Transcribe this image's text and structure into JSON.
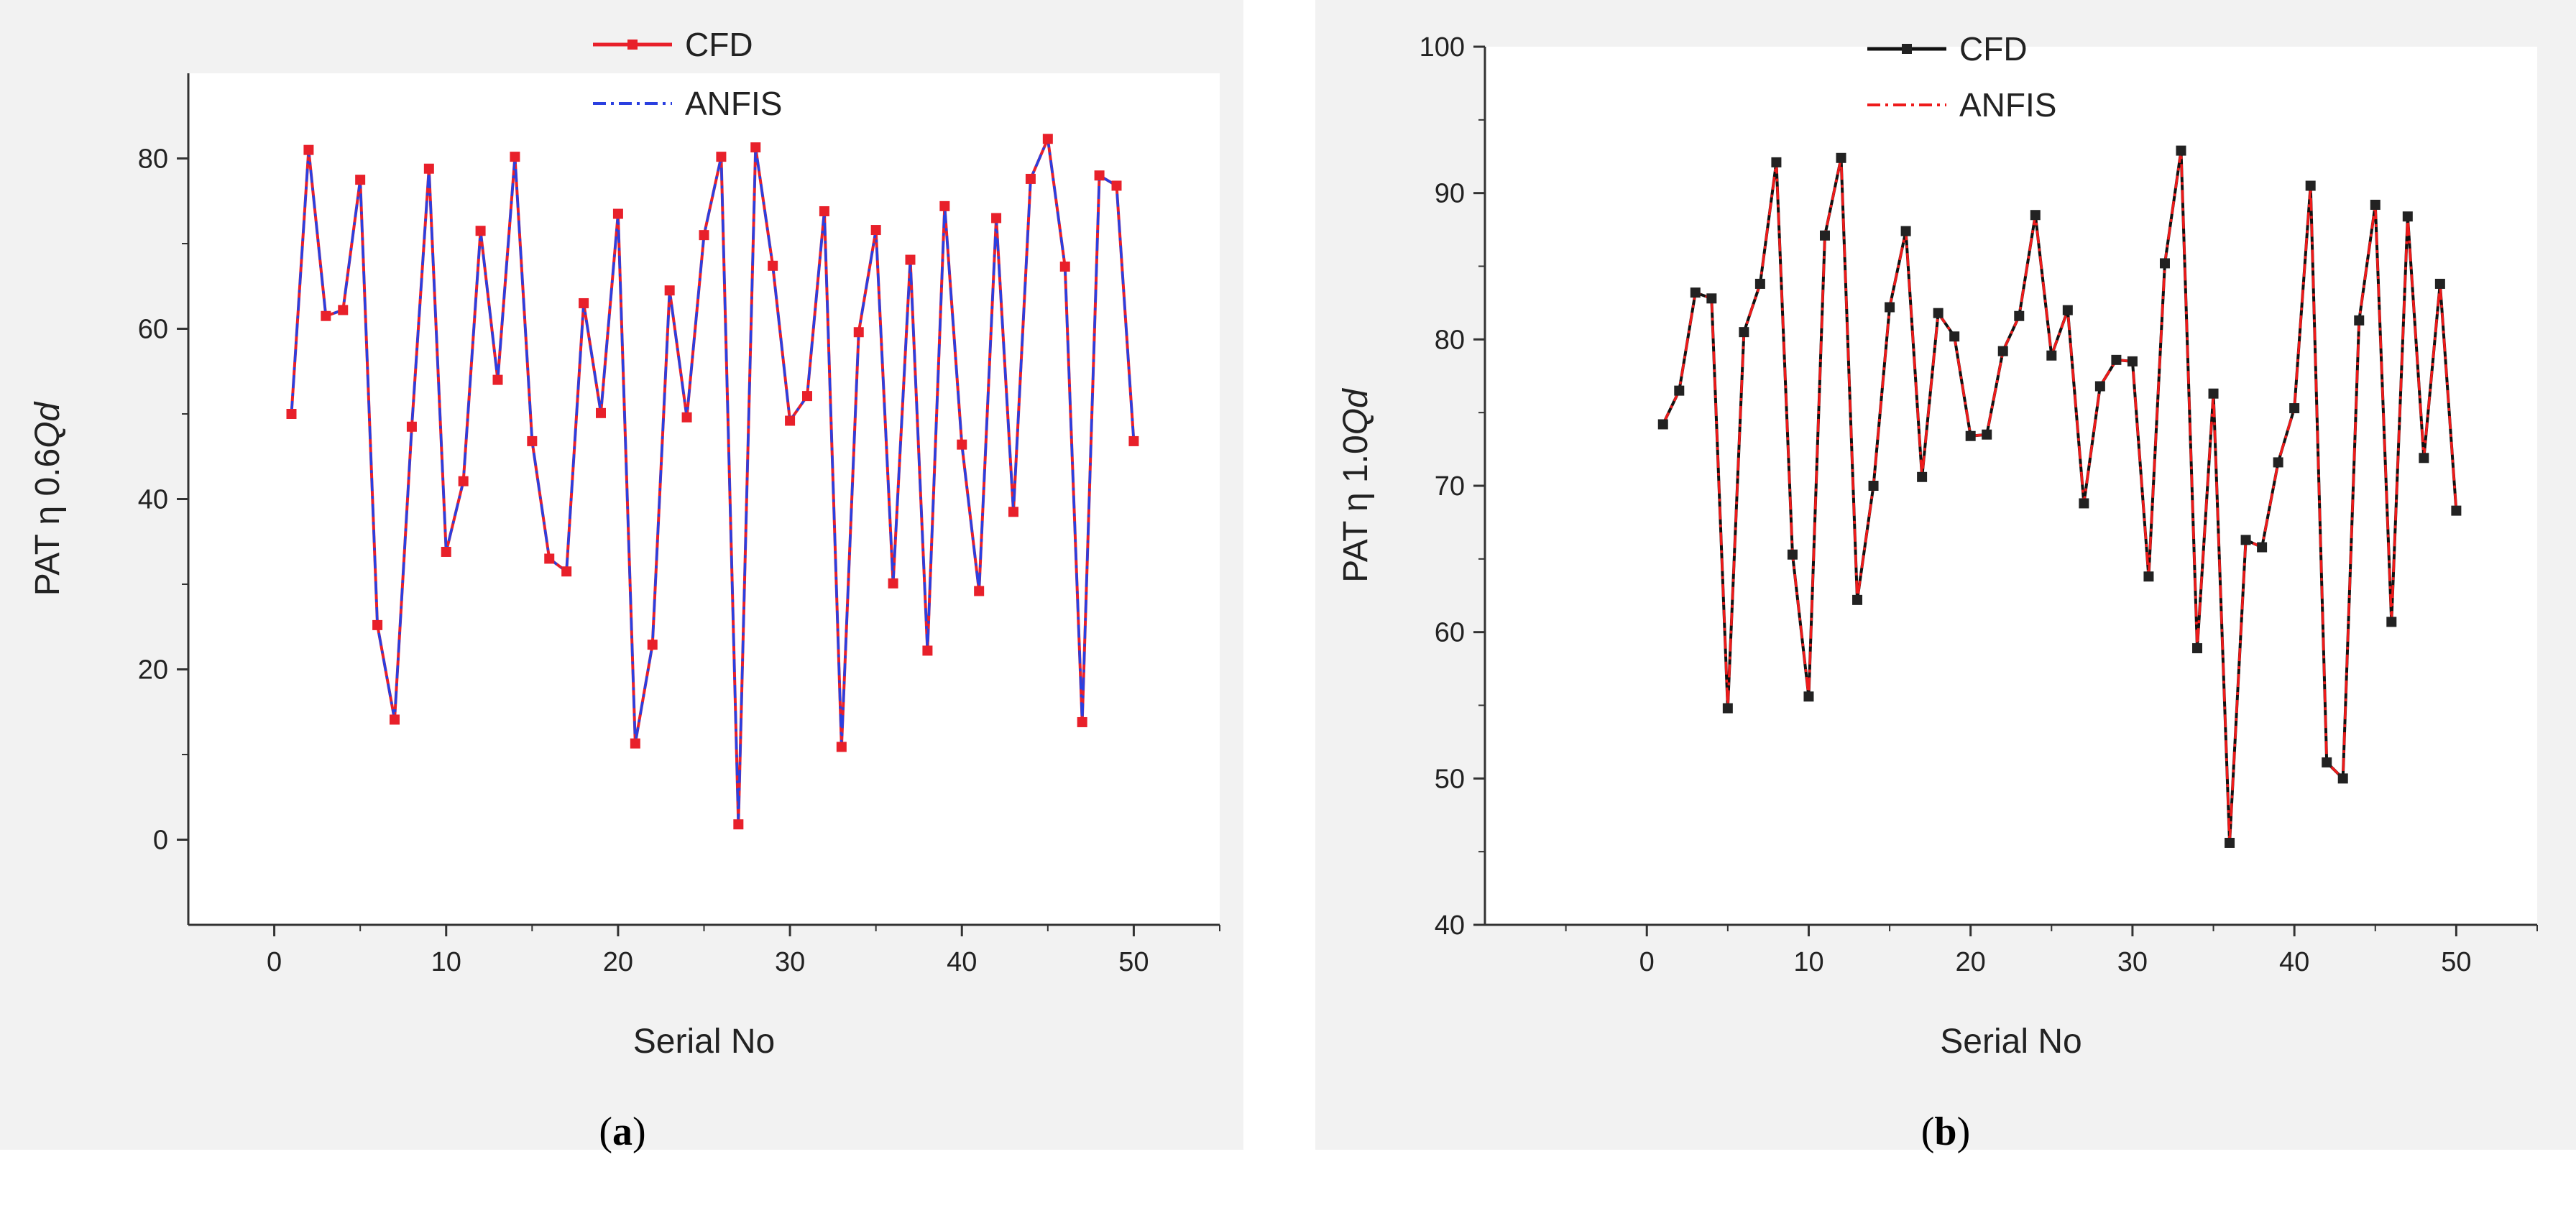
{
  "chart_data": [
    {
      "type": "line",
      "panel_label": "a",
      "title": "",
      "xlabel": "Serial No",
      "ylabel_prefix": "PAT η 0.6",
      "ylabel_italic": "Qd",
      "xlim": [
        -5,
        55
      ],
      "ylim": [
        -10,
        90
      ],
      "xticks": [
        0,
        10,
        20,
        30,
        40,
        50
      ],
      "yticks": [
        0,
        20,
        40,
        60,
        80
      ],
      "legend_position": "top-center",
      "x": [
        1,
        2,
        3,
        4,
        5,
        6,
        7,
        8,
        9,
        10,
        11,
        12,
        13,
        14,
        15,
        16,
        17,
        18,
        19,
        20,
        21,
        22,
        23,
        24,
        25,
        26,
        27,
        28,
        29,
        30,
        31,
        32,
        33,
        34,
        35,
        36,
        37,
        38,
        39,
        40,
        41,
        42,
        43,
        44,
        45,
        46,
        47,
        48,
        49,
        50
      ],
      "series": [
        {
          "name": "CFD",
          "color": "#e8202a",
          "style": "solid",
          "marker": "square",
          "values": [
            50,
            81,
            61.5,
            62.2,
            77.5,
            25.2,
            14.1,
            48.5,
            78.8,
            33.8,
            42.1,
            71.5,
            54,
            80.2,
            46.8,
            33,
            31.5,
            63,
            50.1,
            73.5,
            11.3,
            22.9,
            64.5,
            49.6,
            71,
            80.2,
            1.8,
            81.3,
            67.4,
            49.2,
            52.1,
            73.8,
            10.9,
            59.6,
            71.6,
            30.1,
            68.1,
            22.2,
            74.4,
            46.4,
            29.2,
            73,
            38.5,
            77.6,
            82.3,
            67.3,
            13.8,
            78,
            76.8,
            46.8
          ]
        },
        {
          "name": "ANFIS",
          "color": "#2a3fe0",
          "style": "dashdot",
          "marker": "none",
          "values": [
            50,
            81,
            61.5,
            62.2,
            77.5,
            25.2,
            14.1,
            48.5,
            78.8,
            33.8,
            42.1,
            71.5,
            54,
            80.2,
            46.8,
            33,
            31.5,
            63,
            50.1,
            73.5,
            11.3,
            22.9,
            64.5,
            49.6,
            71,
            80.2,
            1.8,
            81.3,
            67.4,
            49.2,
            52.1,
            73.8,
            10.9,
            59.6,
            71.6,
            30.1,
            68.1,
            22.2,
            74.4,
            46.4,
            29.2,
            73,
            38.5,
            77.6,
            82.3,
            67.3,
            13.8,
            78,
            76.8,
            46.8
          ]
        }
      ]
    },
    {
      "type": "line",
      "panel_label": "b",
      "title": "",
      "xlabel": "Serial No",
      "ylabel_prefix": "PAT η 1.0",
      "ylabel_italic": "Qd",
      "xlim": [
        -10,
        55
      ],
      "ylim": [
        40,
        100
      ],
      "xticks": [
        0,
        10,
        20,
        30,
        40,
        50
      ],
      "yticks": [
        40,
        50,
        60,
        70,
        80,
        90,
        100
      ],
      "legend_position": "top-center",
      "x": [
        1,
        2,
        3,
        4,
        5,
        6,
        7,
        8,
        9,
        10,
        11,
        12,
        13,
        14,
        15,
        16,
        17,
        18,
        19,
        20,
        21,
        22,
        23,
        24,
        25,
        26,
        27,
        28,
        29,
        30,
        31,
        32,
        33,
        34,
        35,
        36,
        37,
        38,
        39,
        40,
        41,
        42,
        43,
        44,
        45,
        46,
        47,
        48,
        49,
        50
      ],
      "series": [
        {
          "name": "CFD",
          "color": "#111111",
          "style": "solid",
          "marker": "square",
          "values": [
            74.2,
            76.5,
            83.2,
            82.8,
            54.8,
            80.5,
            83.8,
            92.1,
            65.3,
            55.6,
            87.1,
            92.4,
            62.2,
            70,
            82.2,
            87.4,
            70.6,
            81.8,
            80.2,
            73.4,
            73.5,
            79.2,
            81.6,
            88.5,
            78.9,
            82,
            68.8,
            76.8,
            78.6,
            78.5,
            63.8,
            85.2,
            92.9,
            58.9,
            76.3,
            45.6,
            66.3,
            65.8,
            71.6,
            75.3,
            90.5,
            51.1,
            50,
            81.3,
            89.2,
            60.7,
            88.4,
            71.9,
            83.8,
            68.3
          ]
        },
        {
          "name": "ANFIS",
          "color": "#ee1b1b",
          "style": "dashdot",
          "marker": "none",
          "values": [
            74.2,
            76.5,
            83.2,
            82.8,
            54.8,
            80.5,
            83.8,
            92.1,
            65.3,
            55.6,
            87.1,
            92.4,
            62.2,
            70,
            82.2,
            87.4,
            70.6,
            81.8,
            80.2,
            73.4,
            73.5,
            79.2,
            81.6,
            88.5,
            78.9,
            82,
            68.8,
            76.8,
            78.6,
            78.5,
            63.8,
            85.2,
            92.9,
            58.9,
            76.3,
            45.6,
            66.3,
            65.8,
            71.6,
            75.3,
            90.5,
            51.1,
            50,
            81.3,
            89.2,
            60.7,
            88.4,
            71.9,
            83.8,
            68.3
          ]
        }
      ]
    }
  ]
}
